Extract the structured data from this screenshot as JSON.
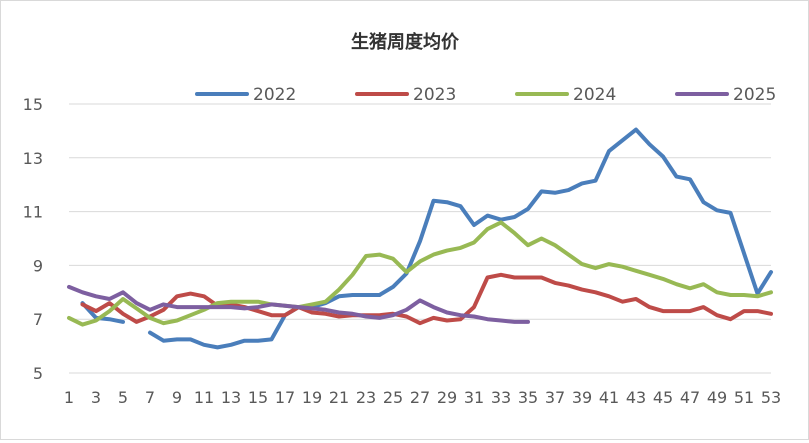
{
  "chart_data": {
    "type": "line",
    "title": "生猪周度均价",
    "xlabel": "",
    "ylabel": "",
    "xlim": [
      1,
      53
    ],
    "ylim": [
      5,
      15
    ],
    "yticks": [
      5,
      7,
      9,
      11,
      13,
      15
    ],
    "xticks": [
      1,
      3,
      5,
      7,
      9,
      11,
      13,
      15,
      17,
      19,
      21,
      23,
      25,
      27,
      29,
      31,
      33,
      35,
      37,
      39,
      41,
      43,
      45,
      47,
      49,
      51,
      53
    ],
    "grid": "horizontal",
    "legend_position": "top-center",
    "series": [
      {
        "name": "2022",
        "color": "#4a7ebb",
        "values": [
          null,
          7.6,
          7.05,
          7.0,
          6.9,
          null,
          6.5,
          6.2,
          6.25,
          6.25,
          6.05,
          5.95,
          6.05,
          6.2,
          6.2,
          6.25,
          7.15,
          7.45,
          7.45,
          7.6,
          7.85,
          7.9,
          7.9,
          7.9,
          8.2,
          8.7,
          9.9,
          11.4,
          11.35,
          11.2,
          10.5,
          10.85,
          10.7,
          10.8,
          11.1,
          11.75,
          11.7,
          11.8,
          12.05,
          12.15,
          13.25,
          13.65,
          14.05,
          13.5,
          13.05,
          12.3,
          12.2,
          11.35,
          11.05,
          10.95,
          9.45,
          7.95,
          8.75
        ]
      },
      {
        "name": "2023",
        "color": "#be4b48",
        "values": [
          null,
          7.55,
          7.3,
          7.6,
          7.2,
          6.9,
          7.1,
          7.35,
          7.85,
          7.95,
          7.85,
          7.5,
          7.55,
          7.45,
          7.3,
          7.15,
          7.15,
          7.45,
          7.25,
          7.2,
          7.1,
          7.15,
          7.15,
          7.15,
          7.2,
          7.1,
          6.85,
          7.05,
          6.95,
          7.0,
          7.45,
          8.55,
          8.65,
          8.55,
          8.55,
          8.55,
          8.35,
          8.25,
          8.1,
          8.0,
          7.85,
          7.65,
          7.75,
          7.45,
          7.3,
          7.3,
          7.3,
          7.45,
          7.15,
          7.0,
          7.3,
          7.3,
          7.2
        ]
      },
      {
        "name": "2024",
        "color": "#98b954",
        "values": [
          7.05,
          6.8,
          6.95,
          7.3,
          7.75,
          7.4,
          7.05,
          6.85,
          6.95,
          7.15,
          7.35,
          7.6,
          7.65,
          7.65,
          7.65,
          7.55,
          7.5,
          7.45,
          7.55,
          7.65,
          8.1,
          8.65,
          9.35,
          9.4,
          9.25,
          8.75,
          9.15,
          9.4,
          9.55,
          9.65,
          9.85,
          10.35,
          10.6,
          10.2,
          9.75,
          10.0,
          9.75,
          9.4,
          9.05,
          8.9,
          9.05,
          8.95,
          8.8,
          8.65,
          8.5,
          8.3,
          8.15,
          8.3,
          8.0,
          7.9,
          7.9,
          7.85,
          8.0
        ]
      },
      {
        "name": "2025",
        "color": "#7d5fa0",
        "values": [
          8.2,
          8.0,
          7.85,
          7.75,
          8.0,
          7.6,
          7.35,
          7.55,
          7.45,
          7.45,
          7.45,
          7.45,
          7.45,
          7.4,
          7.45,
          7.55,
          7.5,
          7.45,
          7.4,
          7.35,
          7.25,
          7.2,
          7.1,
          7.05,
          7.15,
          7.35,
          7.7,
          7.45,
          7.25,
          7.15,
          7.1,
          7.0,
          6.95,
          6.9,
          6.9
        ]
      }
    ]
  }
}
